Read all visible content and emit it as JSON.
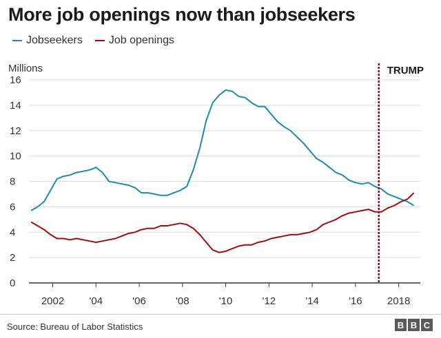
{
  "header": {
    "title": "More job openings now than jobseekers"
  },
  "colors": {
    "jobseekers": "#1b8aab",
    "openings": "#a50a0a",
    "grid": "#dddddd",
    "axis": "#333333",
    "trump": "#8b0f1c"
  },
  "chart_data": {
    "type": "line",
    "title": "More job openings now than jobseekers",
    "xlabel": "",
    "ylabel": "Millions",
    "ylim": [
      0,
      16
    ],
    "xlim": [
      2000.9,
      2019.0
    ],
    "yticks": [
      0,
      2,
      4,
      6,
      8,
      10,
      12,
      14,
      16
    ],
    "xtick_values": [
      2002,
      2004,
      2006,
      2008,
      2010,
      2012,
      2014,
      2016,
      2018
    ],
    "xtick_labels": [
      "2002",
      "'04",
      "'06",
      "'08",
      "'10",
      "'12",
      "'14",
      "'16",
      "2018"
    ],
    "grid": "horizontal",
    "legend": "top-left",
    "annotation": {
      "label": "TRUMP",
      "x": 2017.08
    },
    "series": [
      {
        "name": "Jobseekers",
        "x": [
          2001.0,
          2001.3,
          2001.6,
          2001.9,
          2002.2,
          2002.5,
          2002.8,
          2003.1,
          2003.4,
          2003.7,
          2004.0,
          2004.3,
          2004.6,
          2004.9,
          2005.2,
          2005.5,
          2005.8,
          2006.1,
          2006.4,
          2006.7,
          2007.0,
          2007.3,
          2007.6,
          2007.9,
          2008.2,
          2008.5,
          2008.8,
          2009.1,
          2009.4,
          2009.7,
          2010.0,
          2010.3,
          2010.6,
          2010.9,
          2011.2,
          2011.5,
          2011.8,
          2012.1,
          2012.4,
          2012.7,
          2013.0,
          2013.3,
          2013.6,
          2013.9,
          2014.2,
          2014.5,
          2014.8,
          2015.1,
          2015.4,
          2015.7,
          2016.0,
          2016.3,
          2016.6,
          2016.9,
          2017.2,
          2017.5,
          2017.8,
          2018.1,
          2018.4,
          2018.7
        ],
        "values": [
          5.7,
          6.0,
          6.4,
          7.3,
          8.2,
          8.4,
          8.5,
          8.7,
          8.8,
          8.9,
          9.1,
          8.7,
          8.0,
          7.9,
          7.8,
          7.7,
          7.5,
          7.1,
          7.1,
          7.0,
          6.9,
          6.9,
          7.1,
          7.3,
          7.6,
          8.9,
          10.6,
          12.8,
          14.2,
          14.8,
          15.2,
          15.1,
          14.7,
          14.6,
          14.2,
          13.9,
          13.9,
          13.3,
          12.7,
          12.3,
          12.0,
          11.5,
          11.0,
          10.4,
          9.8,
          9.5,
          9.1,
          8.7,
          8.5,
          8.1,
          7.9,
          7.8,
          7.9,
          7.6,
          7.4,
          7.0,
          6.8,
          6.6,
          6.4,
          6.1
        ]
      },
      {
        "name": "Job openings",
        "x": [
          2001.0,
          2001.3,
          2001.6,
          2001.9,
          2002.2,
          2002.5,
          2002.8,
          2003.1,
          2003.4,
          2003.7,
          2004.0,
          2004.3,
          2004.6,
          2004.9,
          2005.2,
          2005.5,
          2005.8,
          2006.1,
          2006.4,
          2006.7,
          2007.0,
          2007.3,
          2007.6,
          2007.9,
          2008.2,
          2008.5,
          2008.8,
          2009.1,
          2009.4,
          2009.7,
          2010.0,
          2010.3,
          2010.6,
          2010.9,
          2011.2,
          2011.5,
          2011.8,
          2012.1,
          2012.4,
          2012.7,
          2013.0,
          2013.3,
          2013.6,
          2013.9,
          2014.2,
          2014.5,
          2014.8,
          2015.1,
          2015.4,
          2015.7,
          2016.0,
          2016.3,
          2016.6,
          2016.9,
          2017.2,
          2017.5,
          2017.8,
          2018.1,
          2018.4,
          2018.7
        ],
        "values": [
          4.8,
          4.5,
          4.2,
          3.8,
          3.5,
          3.5,
          3.4,
          3.5,
          3.4,
          3.3,
          3.2,
          3.3,
          3.4,
          3.5,
          3.7,
          3.9,
          4.0,
          4.2,
          4.3,
          4.3,
          4.5,
          4.5,
          4.6,
          4.7,
          4.6,
          4.3,
          3.8,
          3.2,
          2.6,
          2.4,
          2.5,
          2.7,
          2.9,
          3.0,
          3.0,
          3.2,
          3.3,
          3.5,
          3.6,
          3.7,
          3.8,
          3.8,
          3.9,
          4.0,
          4.2,
          4.6,
          4.8,
          5.0,
          5.3,
          5.5,
          5.6,
          5.7,
          5.8,
          5.6,
          5.6,
          5.9,
          6.1,
          6.4,
          6.6,
          7.1
        ]
      }
    ]
  },
  "footer": {
    "source": "Source: Bureau of Labor Statistics",
    "logo_letters": [
      "B",
      "B",
      "C"
    ]
  }
}
